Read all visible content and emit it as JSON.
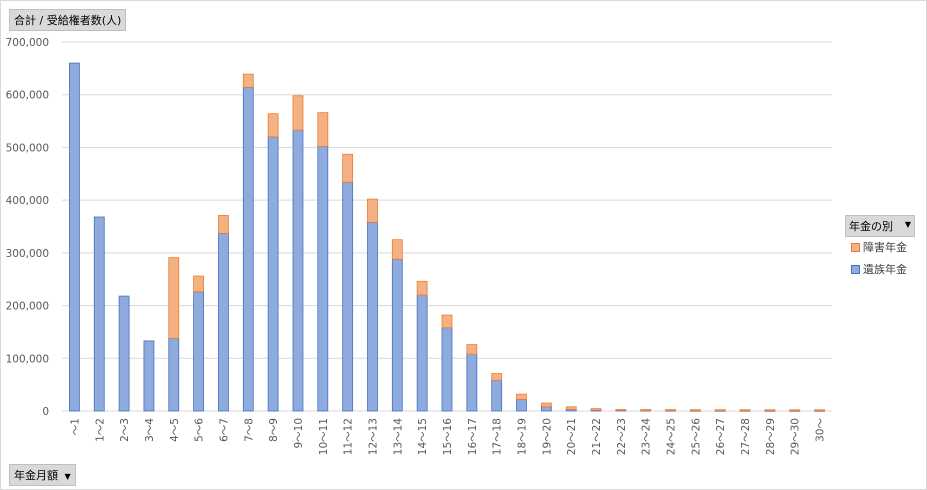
{
  "value_field": "合計 / 受給権者数(人)",
  "axis_field": "年金月額",
  "legend_field": "年金の別",
  "dropdown_icon": "dropdown-triangle-icon",
  "colors": {
    "grid": "#d9d9d9",
    "axis_text": "#595959",
    "survivor": "#8faadc",
    "survivor_stroke": "#4472c4",
    "disability": "#f4b183",
    "disability_stroke": "#ed7d31"
  },
  "chart_data": {
    "type": "bar",
    "stacked": true,
    "title": "",
    "xlabel": "年金月額",
    "ylabel": "合計 / 受給権者数(人)",
    "ylim": [
      0,
      700000
    ],
    "yticks": [
      "0",
      "100,000",
      "200,000",
      "300,000",
      "400,000",
      "500,000",
      "600,000",
      "700,000"
    ],
    "ytick_values": [
      0,
      100000,
      200000,
      300000,
      400000,
      500000,
      600000,
      700000
    ],
    "grid": true,
    "legend_position": "right",
    "categories": [
      "～1",
      "1～2",
      "2～3",
      "3～4",
      "4～5",
      "5～6",
      "6～7",
      "7～8",
      "8～9",
      "9～10",
      "10～11",
      "11～12",
      "12～13",
      "13～14",
      "14～15",
      "15～16",
      "16～17",
      "17～18",
      "18～19",
      "19～20",
      "20～21",
      "21～22",
      "22～23",
      "23～24",
      "24～25",
      "25～26",
      "26～27",
      "27～28",
      "28～29",
      "29～30",
      "30～"
    ],
    "series": [
      {
        "name": "遺族年金",
        "values": [
          660000,
          368000,
          218000,
          133000,
          138000,
          226000,
          337000,
          614000,
          520000,
          533000,
          502000,
          434000,
          358000,
          288000,
          220000,
          158000,
          108000,
          58000,
          22000,
          8000,
          3000,
          1500,
          1000,
          800,
          700,
          600,
          500,
          500,
          400,
          400,
          400
        ]
      },
      {
        "name": "障害年金",
        "values": [
          0,
          0,
          0,
          0,
          153000,
          30000,
          34000,
          25000,
          44000,
          65000,
          64000,
          53000,
          44000,
          37000,
          26000,
          24000,
          18000,
          13000,
          10000,
          7000,
          5000,
          3000,
          2000,
          2000,
          2000,
          2000,
          2000,
          2000,
          2000,
          2000,
          2000
        ]
      }
    ]
  }
}
